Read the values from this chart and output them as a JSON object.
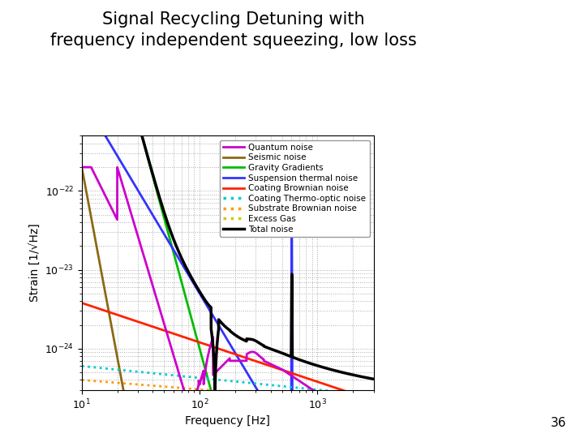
{
  "title_line1": "Signal Recycling Detuning with",
  "title_line2": "frequency independent squeezing, low loss",
  "xlabel": "Frequency [Hz]",
  "ylabel": "Strain [1/√Hz]",
  "slide_number": "36",
  "xlim": [
    10,
    3000
  ],
  "ylim": [
    3e-25,
    5e-22
  ],
  "legend_entries": [
    {
      "label": "Quantum noise",
      "color": "#CC00CC",
      "style": "solid",
      "lw": 2.0
    },
    {
      "label": "Seismic noise",
      "color": "#8B6914",
      "style": "solid",
      "lw": 2.0
    },
    {
      "label": "Gravity Gradients",
      "color": "#00BB00",
      "style": "solid",
      "lw": 2.0
    },
    {
      "label": "Suspension thermal noise",
      "color": "#3333FF",
      "style": "solid",
      "lw": 2.0
    },
    {
      "label": "Coating Brownian noise",
      "color": "#FF2200",
      "style": "solid",
      "lw": 2.0
    },
    {
      "label": "Coating Thermo-optic noise",
      "color": "#00CCCC",
      "style": "dotted",
      "lw": 2.5
    },
    {
      "label": "Substrate Brownian noise",
      "color": "#FF9900",
      "style": "dotted",
      "lw": 2.5
    },
    {
      "label": "Excess Gas",
      "color": "#CCCC00",
      "style": "dotted",
      "lw": 2.5
    },
    {
      "label": "Total noise",
      "color": "#000000",
      "style": "solid",
      "lw": 2.5
    }
  ]
}
